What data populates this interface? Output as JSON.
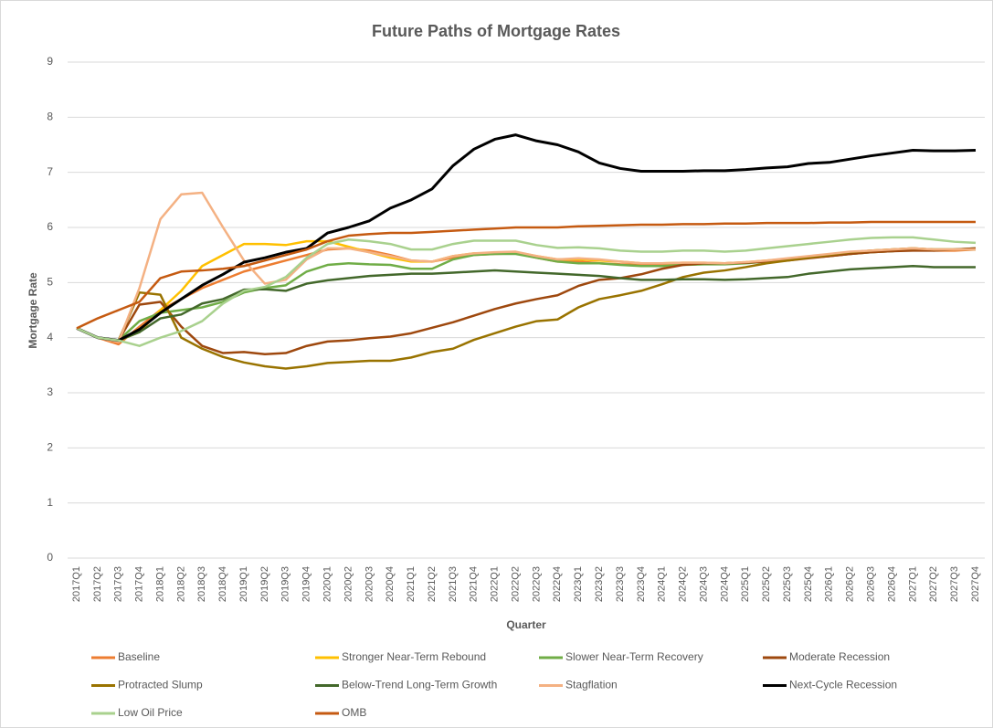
{
  "chart_data": {
    "type": "line",
    "title": "Future Paths of Mortgage Rates",
    "x_label": "Quarter",
    "y_label": "Mortgage Rate",
    "categories": [
      "2017Q1",
      "2017Q2",
      "2017Q3",
      "2017Q4",
      "2018Q1",
      "2018Q2",
      "2018Q3",
      "2018Q4",
      "2019Q1",
      "2019Q2",
      "2019Q3",
      "2019Q4",
      "2020Q1",
      "2020Q2",
      "2020Q3",
      "2020Q4",
      "2021Q1",
      "2021Q2",
      "2021Q3",
      "2021Q4",
      "2022Q1",
      "2022Q2",
      "2022Q3",
      "2022Q4",
      "2023Q1",
      "2023Q2",
      "2023Q3",
      "2023Q4",
      "2024Q1",
      "2024Q2",
      "2024Q3",
      "2024Q4",
      "2025Q1",
      "2025Q2",
      "2025Q3",
      "2025Q4",
      "2026Q1",
      "2026Q2",
      "2026Q3",
      "2026Q4",
      "2027Q1",
      "2027Q2",
      "2027Q3",
      "2027Q4"
    ],
    "ylim": [
      0,
      9
    ],
    "yticks": [
      0,
      1,
      2,
      3,
      4,
      5,
      6,
      7,
      8,
      9
    ],
    "grid": true,
    "legend": "bottom",
    "series": [
      {
        "name": "Baseline",
        "color": "#ED7D31",
        "values": [
          4.17,
          4.0,
          3.88,
          4.2,
          4.5,
          4.7,
          4.9,
          5.05,
          5.2,
          5.3,
          5.4,
          5.5,
          5.6,
          5.62,
          5.58,
          5.5,
          5.4,
          5.38,
          5.45,
          5.5,
          5.52,
          5.53,
          5.45,
          5.38,
          5.38,
          5.35,
          5.33,
          5.32,
          5.33,
          5.34,
          5.35,
          5.35,
          5.36,
          5.38,
          5.42,
          5.45,
          5.48,
          5.52,
          5.55,
          5.57,
          5.6,
          5.58,
          5.58,
          5.6
        ]
      },
      {
        "name": "Stronger Near-Term Rebound",
        "color": "#FFC000",
        "values": [
          4.17,
          4.0,
          3.95,
          4.1,
          4.5,
          4.85,
          5.3,
          5.5,
          5.7,
          5.7,
          5.68,
          5.75,
          5.75,
          5.65,
          5.55,
          5.45,
          5.38,
          5.38,
          5.48,
          5.53,
          5.53,
          5.55,
          5.48,
          5.42,
          5.42,
          5.4,
          5.38,
          5.35,
          5.35,
          5.36,
          5.36,
          5.35,
          5.37,
          5.4,
          5.43,
          5.47,
          5.5,
          5.55,
          5.58,
          5.6,
          5.62,
          5.6,
          5.6,
          5.6
        ]
      },
      {
        "name": "Slower Near-Term Recovery",
        "color": "#70AD47",
        "values": [
          4.17,
          4.0,
          3.95,
          4.3,
          4.45,
          4.5,
          4.55,
          4.65,
          4.82,
          4.9,
          4.95,
          5.2,
          5.32,
          5.35,
          5.33,
          5.32,
          5.25,
          5.25,
          5.42,
          5.5,
          5.52,
          5.52,
          5.45,
          5.38,
          5.35,
          5.35,
          5.32,
          5.3,
          5.3,
          5.32,
          5.33,
          5.33,
          5.35,
          5.38,
          5.42,
          5.45,
          5.48,
          5.52,
          5.55,
          5.57,
          5.6,
          5.6,
          5.6,
          5.62
        ]
      },
      {
        "name": "Moderate Recession",
        "color": "#9E480E",
        "values": [
          4.17,
          4.0,
          3.95,
          4.6,
          4.65,
          4.2,
          3.85,
          3.72,
          3.74,
          3.7,
          3.72,
          3.85,
          3.93,
          3.95,
          3.99,
          4.02,
          4.08,
          4.18,
          4.28,
          4.4,
          4.52,
          4.62,
          4.7,
          4.77,
          4.94,
          5.05,
          5.08,
          5.15,
          5.25,
          5.32,
          5.35,
          5.35,
          5.36,
          5.38,
          5.4,
          5.44,
          5.48,
          5.52,
          5.55,
          5.57,
          5.58,
          5.58,
          5.6,
          5.62
        ]
      },
      {
        "name": "Protracted Slump",
        "color": "#997300",
        "values": [
          4.17,
          4.0,
          3.95,
          4.82,
          4.78,
          4.0,
          3.8,
          3.65,
          3.55,
          3.48,
          3.44,
          3.48,
          3.54,
          3.56,
          3.58,
          3.58,
          3.64,
          3.74,
          3.8,
          3.96,
          4.08,
          4.2,
          4.3,
          4.33,
          4.55,
          4.7,
          4.77,
          4.85,
          4.97,
          5.1,
          5.18,
          5.22,
          5.28,
          5.35,
          5.4,
          5.45,
          5.5,
          5.55,
          5.58,
          5.6,
          5.62,
          5.6,
          5.6,
          5.6
        ]
      },
      {
        "name": "Below-Trend Long-Term Growth",
        "color": "#43682B",
        "values": [
          4.17,
          4.0,
          3.95,
          4.1,
          4.35,
          4.42,
          4.62,
          4.7,
          4.87,
          4.88,
          4.85,
          4.98,
          5.04,
          5.08,
          5.12,
          5.14,
          5.16,
          5.16,
          5.18,
          5.2,
          5.22,
          5.2,
          5.18,
          5.16,
          5.14,
          5.12,
          5.08,
          5.05,
          5.05,
          5.06,
          5.06,
          5.05,
          5.06,
          5.08,
          5.1,
          5.16,
          5.2,
          5.24,
          5.26,
          5.28,
          5.3,
          5.28,
          5.28,
          5.28
        ]
      },
      {
        "name": "Stagflation",
        "color": "#F4B183",
        "values": [
          4.17,
          4.0,
          3.92,
          4.9,
          6.15,
          6.6,
          6.63,
          6.0,
          5.4,
          4.98,
          5.05,
          5.42,
          5.62,
          5.62,
          5.55,
          5.48,
          5.4,
          5.38,
          5.48,
          5.53,
          5.55,
          5.56,
          5.48,
          5.42,
          5.44,
          5.42,
          5.38,
          5.35,
          5.35,
          5.36,
          5.36,
          5.35,
          5.37,
          5.4,
          5.44,
          5.48,
          5.52,
          5.56,
          5.58,
          5.6,
          5.62,
          5.6,
          5.6,
          5.6
        ]
      },
      {
        "name": "Next-Cycle Recession",
        "color": "#000000",
        "values": [
          4.17,
          4.0,
          3.95,
          4.15,
          4.45,
          4.7,
          4.95,
          5.15,
          5.37,
          5.45,
          5.55,
          5.62,
          5.9,
          6.0,
          6.12,
          6.35,
          6.5,
          6.7,
          7.12,
          7.42,
          7.6,
          7.68,
          7.57,
          7.5,
          7.37,
          7.17,
          7.07,
          7.02,
          7.02,
          7.02,
          7.03,
          7.03,
          7.05,
          7.08,
          7.1,
          7.16,
          7.18,
          7.24,
          7.3,
          7.35,
          7.4,
          7.39,
          7.39,
          7.4
        ]
      },
      {
        "name": "Low Oil Price",
        "color": "#A9D18E",
        "values": [
          4.17,
          4.0,
          3.95,
          3.85,
          4.0,
          4.12,
          4.3,
          4.62,
          4.85,
          4.92,
          5.1,
          5.45,
          5.7,
          5.78,
          5.75,
          5.7,
          5.6,
          5.6,
          5.7,
          5.76,
          5.76,
          5.76,
          5.68,
          5.63,
          5.64,
          5.62,
          5.58,
          5.56,
          5.56,
          5.58,
          5.58,
          5.56,
          5.58,
          5.62,
          5.66,
          5.7,
          5.74,
          5.78,
          5.81,
          5.82,
          5.82,
          5.78,
          5.74,
          5.72
        ]
      },
      {
        "name": "OMB",
        "color": "#C55A11",
        "values": [
          4.17,
          4.35,
          4.5,
          4.65,
          5.08,
          5.2,
          5.22,
          5.25,
          5.3,
          5.4,
          5.5,
          5.6,
          5.75,
          5.85,
          5.88,
          5.9,
          5.9,
          5.92,
          5.94,
          5.96,
          5.98,
          6.0,
          6.0,
          6.0,
          6.02,
          6.03,
          6.04,
          6.05,
          6.05,
          6.06,
          6.06,
          6.07,
          6.07,
          6.08,
          6.08,
          6.08,
          6.09,
          6.09,
          6.1,
          6.1,
          6.1,
          6.1,
          6.1,
          6.1
        ]
      }
    ]
  }
}
